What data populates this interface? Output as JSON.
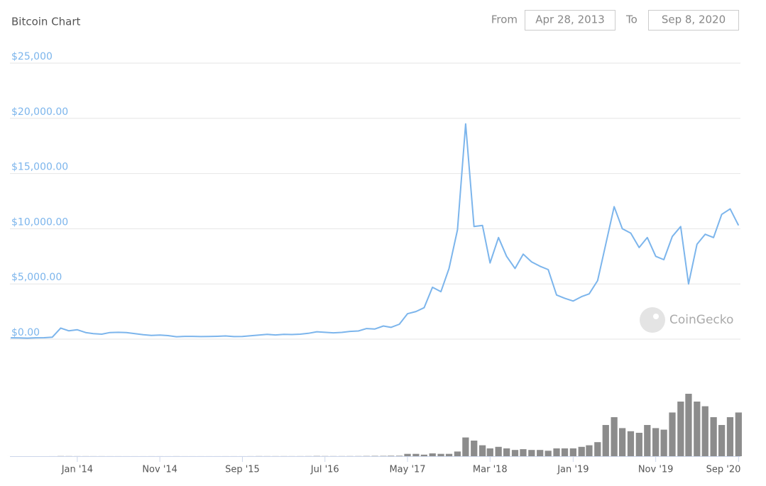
{
  "chart_data": {
    "type": "line",
    "title": "Bitcoin Chart",
    "controls": {
      "from_label": "From",
      "from": "Apr 28, 2013",
      "to_label": "To",
      "to": "Sep 8, 2020"
    },
    "watermark": "CoinGecko",
    "x": [
      "2013-05",
      "2013-06",
      "2013-07",
      "2013-08",
      "2013-09",
      "2013-10",
      "2013-11",
      "2013-12",
      "2014-01",
      "2014-02",
      "2014-03",
      "2014-04",
      "2014-05",
      "2014-06",
      "2014-07",
      "2014-08",
      "2014-09",
      "2014-10",
      "2014-11",
      "2014-12",
      "2015-01",
      "2015-02",
      "2015-03",
      "2015-04",
      "2015-05",
      "2015-06",
      "2015-07",
      "2015-08",
      "2015-09",
      "2015-10",
      "2015-11",
      "2015-12",
      "2016-01",
      "2016-02",
      "2016-03",
      "2016-04",
      "2016-05",
      "2016-06",
      "2016-07",
      "2016-08",
      "2016-09",
      "2016-10",
      "2016-11",
      "2016-12",
      "2017-01",
      "2017-02",
      "2017-03",
      "2017-04",
      "2017-05",
      "2017-06",
      "2017-07",
      "2017-08",
      "2017-09",
      "2017-10",
      "2017-11",
      "2017-12",
      "2018-01",
      "2018-02",
      "2018-03",
      "2018-04",
      "2018-05",
      "2018-06",
      "2018-07",
      "2018-08",
      "2018-09",
      "2018-10",
      "2018-11",
      "2018-12",
      "2019-01",
      "2019-02",
      "2019-03",
      "2019-04",
      "2019-05",
      "2019-06",
      "2019-07",
      "2019-08",
      "2019-09",
      "2019-10",
      "2019-11",
      "2019-12",
      "2020-01",
      "2020-02",
      "2020-03",
      "2020-04",
      "2020-05",
      "2020-06",
      "2020-07",
      "2020-08",
      "2020-09"
    ],
    "series": [
      {
        "color": "#7cb5ec",
        "values": [
          120,
          110,
          90,
          120,
          130,
          180,
          1000,
          750,
          850,
          600,
          500,
          450,
          600,
          620,
          600,
          500,
          400,
          340,
          370,
          320,
          220,
          250,
          250,
          230,
          235,
          260,
          290,
          230,
          235,
          310,
          370,
          430,
          380,
          430,
          415,
          450,
          530,
          670,
          620,
          575,
          610,
          700,
          740,
          960,
          920,
          1190,
          1070,
          1350,
          2300,
          2500,
          2850,
          4700,
          4300,
          6400,
          9900,
          19500,
          10200,
          10300,
          6900,
          9200,
          7500,
          6400,
          7700,
          7000,
          6600,
          6300,
          4000,
          3700,
          3450,
          3850,
          4100,
          5300,
          8600,
          12000,
          10000,
          9600,
          8300,
          9200,
          7500,
          7200,
          9300,
          10200,
          5000,
          8600,
          9500,
          9200,
          11300,
          11800,
          10300
        ]
      }
    ],
    "volume": {
      "color": "#8c8c8c",
      "ylim": [
        0,
        50
      ],
      "values": [
        0.01,
        0.01,
        0.01,
        0.01,
        0.01,
        0.02,
        0.1,
        0.08,
        0.05,
        0.05,
        0.04,
        0.04,
        0.03,
        0.03,
        0.02,
        0.02,
        0.02,
        0.03,
        0.03,
        0.02,
        0.04,
        0.02,
        0.02,
        0.02,
        0.02,
        0.02,
        0.03,
        0.03,
        0.02,
        0.04,
        0.08,
        0.06,
        0.06,
        0.06,
        0.05,
        0.06,
        0.08,
        0.15,
        0.1,
        0.08,
        0.08,
        0.09,
        0.1,
        0.15,
        0.2,
        0.2,
        0.3,
        0.3,
        1.5,
        1.5,
        1,
        1.8,
        1.5,
        1.5,
        3,
        12,
        10,
        7,
        5,
        6,
        5,
        4,
        4.5,
        4,
        4,
        3.5,
        5,
        5,
        5,
        6,
        7,
        9,
        20,
        25,
        18,
        16,
        15,
        20,
        18,
        17,
        28,
        35,
        40,
        35,
        32,
        25,
        20,
        25,
        28
      ]
    },
    "xlim": [
      "2013-04-28",
      "2020-09-08"
    ],
    "xticks": [
      {
        "value": "2014-01",
        "label": "Jan '14"
      },
      {
        "value": "2014-11",
        "label": "Nov '14"
      },
      {
        "value": "2015-09",
        "label": "Sep '15"
      },
      {
        "value": "2016-07",
        "label": "Jul '16"
      },
      {
        "value": "2017-05",
        "label": "May '17"
      },
      {
        "value": "2018-03",
        "label": "Mar '18"
      },
      {
        "value": "2019-01",
        "label": "Jan '19"
      },
      {
        "value": "2019-11",
        "label": "Nov '19"
      },
      {
        "value": "2020-09",
        "label": "Sep '20"
      }
    ],
    "ylim": [
      0,
      25000
    ],
    "yticks": [
      {
        "value": 0,
        "label": "$0.00"
      },
      {
        "value": 5000,
        "label": "$5,000.00"
      },
      {
        "value": 10000,
        "label": "$10,000.00"
      },
      {
        "value": 15000,
        "label": "$15,000.00"
      },
      {
        "value": 20000,
        "label": "$20,000.00"
      },
      {
        "value": 25000,
        "label": "$25,000"
      }
    ],
    "grid": true
  }
}
